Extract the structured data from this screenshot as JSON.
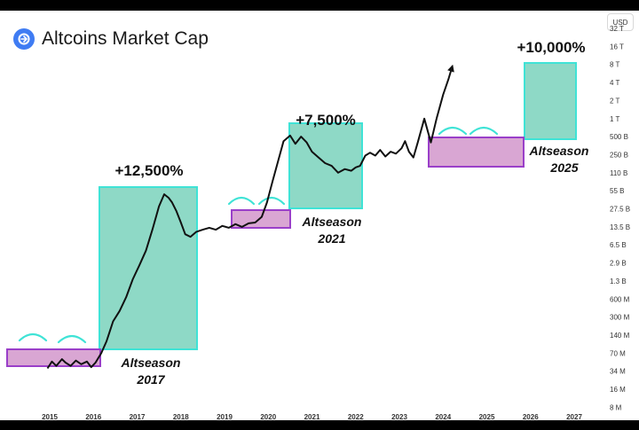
{
  "header": {
    "title": "Altcoins Market Cap",
    "currency_button": "USD",
    "logo_icon": "chart-logo-icon"
  },
  "colors": {
    "line": "#111111",
    "altseason_fill": "#8ed9c6",
    "altseason_border": "#3fe3d6",
    "accumulation_fill": "#d9a6d3",
    "accumulation_border": "#9a3fc9",
    "arc": "#3fe3d6",
    "logo": "#3f7cf3"
  },
  "chart_data": {
    "type": "line",
    "title": "Altcoins Market Cap",
    "y_scale": "log",
    "y_tick_labels": [
      "32 T",
      "16 T",
      "8 T",
      "4 T",
      "2 T",
      "1 T",
      "500 B",
      "250 B",
      "110 B",
      "55 B",
      "27.5 B",
      "13.5 B",
      "6.5 B",
      "2.9 B",
      "1.3 B",
      "600 M",
      "300 M",
      "140 M",
      "70 M",
      "34 M",
      "16 M",
      "8 M"
    ],
    "x_tick_labels": [
      "2015",
      "2016",
      "2017",
      "2018",
      "2019",
      "2020",
      "2021",
      "2022",
      "2023",
      "2024",
      "2025",
      "2026",
      "2027"
    ],
    "series": [
      {
        "points": [
          [
            2014.95,
            38000000
          ],
          [
            2015.05,
            50000000
          ],
          [
            2015.15,
            42000000
          ],
          [
            2015.28,
            55000000
          ],
          [
            2015.36,
            48000000
          ],
          [
            2015.48,
            42000000
          ],
          [
            2015.6,
            52000000
          ],
          [
            2015.72,
            45000000
          ],
          [
            2015.85,
            50000000
          ],
          [
            2015.95,
            40000000
          ],
          [
            2016.05,
            48000000
          ],
          [
            2016.18,
            70000000
          ],
          [
            2016.3,
            110000000
          ],
          [
            2016.45,
            250000000
          ],
          [
            2016.6,
            380000000
          ],
          [
            2016.75,
            650000000
          ],
          [
            2016.9,
            1400000000
          ],
          [
            2017.05,
            2600000000
          ],
          [
            2017.2,
            5000000000
          ],
          [
            2017.35,
            12000000000
          ],
          [
            2017.5,
            30000000000
          ],
          [
            2017.62,
            48000000000
          ],
          [
            2017.72,
            42000000000
          ],
          [
            2017.8,
            35000000000
          ],
          [
            2017.9,
            25000000000
          ],
          [
            2018.0,
            16000000000
          ],
          [
            2018.1,
            10000000000
          ],
          [
            2018.22,
            9000000000
          ],
          [
            2018.35,
            11000000000
          ],
          [
            2018.5,
            12000000000
          ],
          [
            2018.65,
            13000000000
          ],
          [
            2018.8,
            12000000000
          ],
          [
            2018.95,
            14000000000
          ],
          [
            2019.1,
            13000000000
          ],
          [
            2019.25,
            15000000000
          ],
          [
            2019.4,
            13500000000
          ],
          [
            2019.55,
            15500000000
          ],
          [
            2019.7,
            16000000000
          ],
          [
            2019.85,
            20000000000
          ],
          [
            2019.97,
            35000000000
          ],
          [
            2020.1,
            80000000000
          ],
          [
            2020.22,
            180000000000
          ],
          [
            2020.35,
            420000000000
          ],
          [
            2020.5,
            520000000000
          ],
          [
            2020.62,
            380000000000
          ],
          [
            2020.75,
            500000000000
          ],
          [
            2020.88,
            400000000000
          ],
          [
            2021.0,
            280000000000
          ],
          [
            2021.15,
            220000000000
          ],
          [
            2021.3,
            170000000000
          ],
          [
            2021.45,
            150000000000
          ],
          [
            2021.6,
            110000000000
          ],
          [
            2021.75,
            130000000000
          ],
          [
            2021.9,
            120000000000
          ],
          [
            2022.0,
            140000000000
          ],
          [
            2022.1,
            150000000000
          ],
          [
            2022.22,
            240000000000
          ],
          [
            2022.33,
            270000000000
          ],
          [
            2022.45,
            240000000000
          ],
          [
            2022.56,
            300000000000
          ],
          [
            2022.68,
            230000000000
          ],
          [
            2022.8,
            280000000000
          ],
          [
            2022.92,
            260000000000
          ],
          [
            2023.05,
            320000000000
          ],
          [
            2023.13,
            420000000000
          ],
          [
            2023.22,
            280000000000
          ],
          [
            2023.32,
            220000000000
          ],
          [
            2023.42,
            400000000000
          ],
          [
            2023.57,
            1000000000000
          ],
          [
            2023.72,
            400000000000
          ],
          [
            2023.85,
            1000000000000
          ],
          [
            2024.0,
            2500000000000
          ],
          [
            2024.12,
            4500000000000
          ],
          [
            2024.2,
            7000000000000
          ]
        ]
      }
    ],
    "annotations": {
      "gains": [
        "+12,500%",
        "+7,500%",
        "+10,000%"
      ],
      "altseasons": [
        {
          "line1": "Altseason",
          "line2": "2017"
        },
        {
          "line1": "Altseason",
          "line2": "2021"
        },
        {
          "line1": "Altseason",
          "line2": "2025"
        }
      ]
    },
    "grid": false,
    "legend": "none"
  }
}
